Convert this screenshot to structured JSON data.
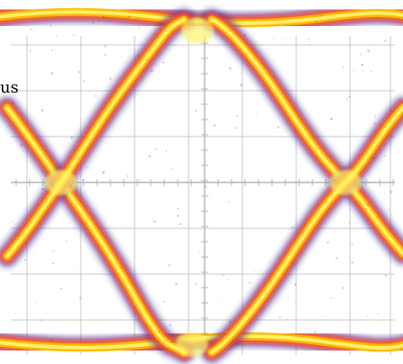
{
  "text_fragment": "us",
  "colors": {
    "grid": "#c8c8c8",
    "axis": "#a8a8a8",
    "outer": "#2f2f8f",
    "mid": "#b32a7a",
    "warm": "#ff5f1f",
    "hot": "#ffc000",
    "core": "#fff36a"
  },
  "chart_data": {
    "type": "eye-diagram",
    "title": "",
    "xlabel": "",
    "ylabel": "",
    "grid": true,
    "x": [
      0,
      0.25,
      0.5,
      0.75,
      1
    ],
    "series": [
      {
        "values": [
          1,
          1,
          1,
          1,
          1
        ]
      },
      {
        "values": [
          0,
          0,
          0,
          0,
          0
        ]
      },
      {
        "values": [
          1,
          0.5,
          0,
          0.5,
          1
        ]
      },
      {
        "values": [
          0,
          0.5,
          1,
          0.5,
          0
        ]
      }
    ],
    "ticks": [],
    "xlim": [
      0,
      1
    ],
    "ylim": [
      0,
      1
    ]
  }
}
